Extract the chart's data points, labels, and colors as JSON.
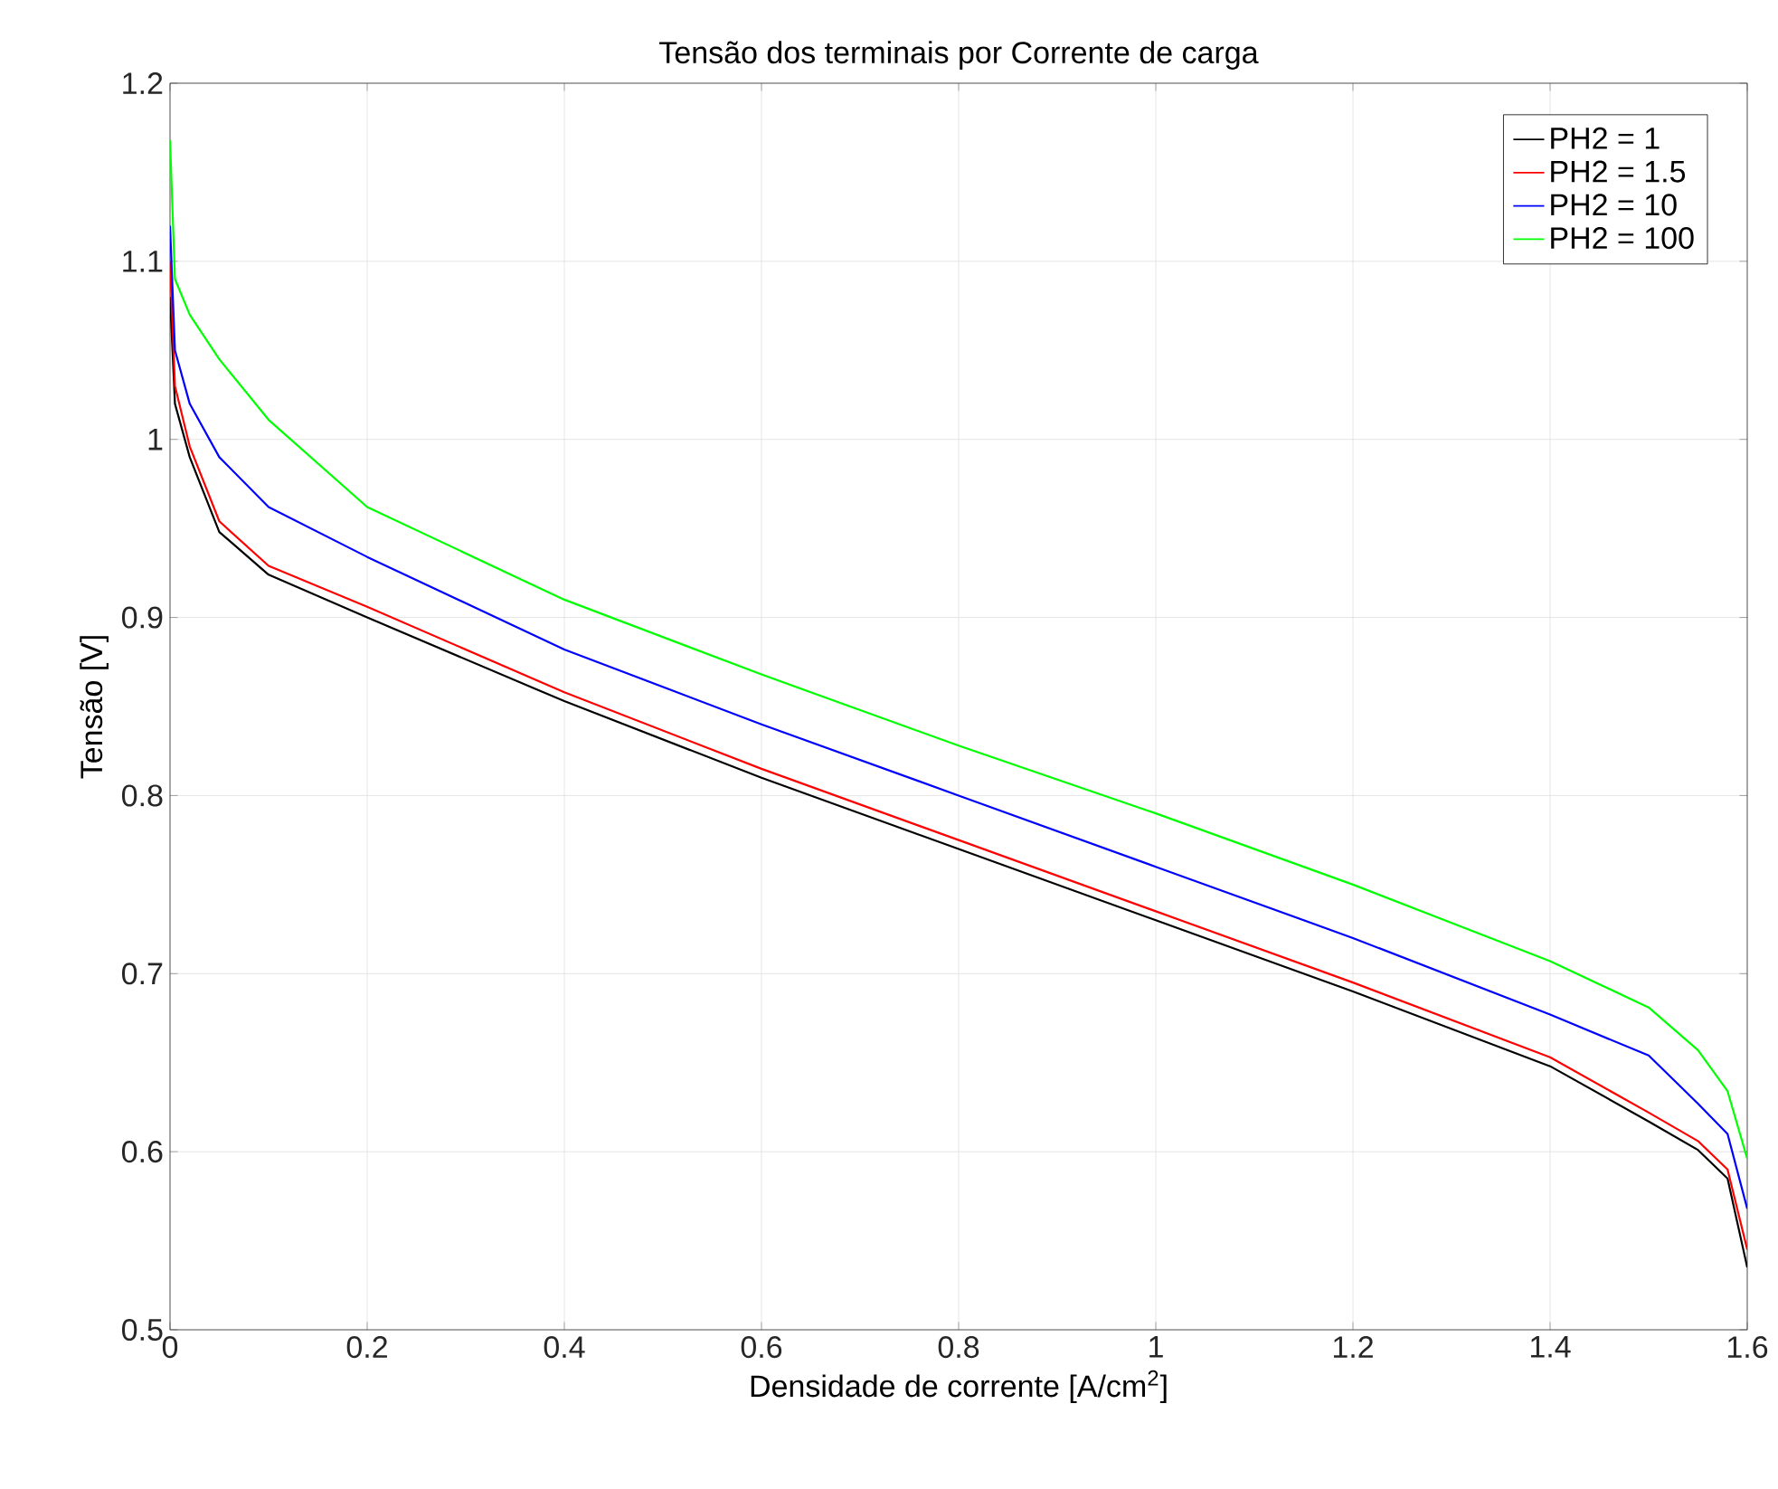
{
  "chart_data": {
    "type": "line",
    "title": "Tensão dos terminais por Corrente de carga",
    "xlabel": "Densidade de corrente [A/cm$^{2}$]",
    "ylabel": "Tensão [V]",
    "x": [
      0,
      0.005,
      0.02,
      0.05,
      0.1,
      0.2,
      0.4,
      0.6,
      0.8,
      1.0,
      1.2,
      1.4,
      1.5,
      1.55,
      1.58,
      1.6
    ],
    "series": [
      {
        "name": "PH2 = 1",
        "color": "#000000",
        "values": [
          1.08,
          1.02,
          0.99,
          0.948,
          0.924,
          0.9,
          0.853,
          0.81,
          0.77,
          0.73,
          0.69,
          0.648,
          0.617,
          0.601,
          0.585,
          0.535
        ]
      },
      {
        "name": "PH2 = 1.5",
        "color": "#ff0000",
        "values": [
          1.1,
          1.03,
          0.996,
          0.954,
          0.929,
          0.906,
          0.858,
          0.815,
          0.775,
          0.735,
          0.695,
          0.653,
          0.622,
          0.606,
          0.59,
          0.545
        ]
      },
      {
        "name": "PH2 = 10",
        "color": "#0000ff",
        "values": [
          1.12,
          1.05,
          1.02,
          0.99,
          0.962,
          0.934,
          0.882,
          0.84,
          0.8,
          0.76,
          0.72,
          0.677,
          0.654,
          0.627,
          0.61,
          0.568
        ]
      },
      {
        "name": "PH2 = 100",
        "color": "#00ff00",
        "values": [
          1.168,
          1.09,
          1.07,
          1.045,
          1.011,
          0.962,
          0.91,
          0.868,
          0.828,
          0.79,
          0.75,
          0.707,
          0.681,
          0.657,
          0.634,
          0.596
        ]
      }
    ],
    "xlim": [
      0,
      1.6
    ],
    "ylim": [
      0.5,
      1.2
    ],
    "xticks": [
      0,
      0.2,
      0.4,
      0.6,
      0.8,
      1,
      1.2,
      1.4,
      1.6
    ],
    "yticks": [
      0.5,
      0.6,
      0.7,
      0.8,
      0.9,
      1,
      1.1,
      1.2
    ],
    "grid": true,
    "legend": "top right",
    "line_style": "solid",
    "marker": "none"
  }
}
